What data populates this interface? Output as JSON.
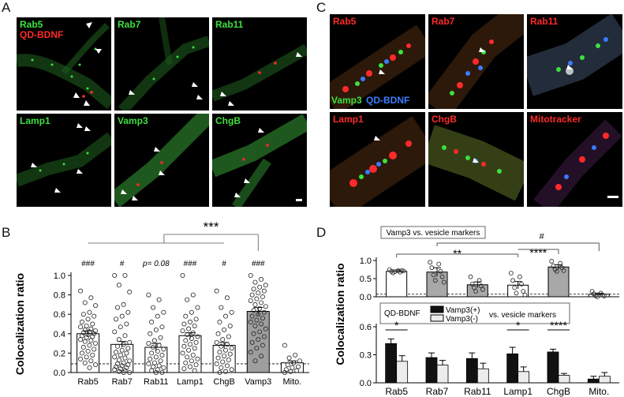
{
  "panels": {
    "A": "A",
    "B": "B",
    "C": "C",
    "D": "D"
  },
  "panelA": {
    "tiles": [
      {
        "labels": [
          {
            "text": "Rab5",
            "color": "green"
          },
          {
            "text": "QD-BDNF",
            "color": "red"
          }
        ]
      },
      {
        "labels": [
          {
            "text": "Rab7",
            "color": "green"
          }
        ]
      },
      {
        "labels": [
          {
            "text": "Rab11",
            "color": "green"
          }
        ]
      },
      {
        "labels": [
          {
            "text": "Lamp1",
            "color": "green"
          }
        ]
      },
      {
        "labels": [
          {
            "text": "Vamp3",
            "color": "green"
          }
        ]
      },
      {
        "labels": [
          {
            "text": "ChgB",
            "color": "green"
          }
        ]
      }
    ]
  },
  "panelC": {
    "tiles": [
      {
        "labels": [
          {
            "text": "Rab5",
            "color": "red"
          }
        ],
        "bottom_labels": [
          {
            "text": "Vamp3",
            "color": "green"
          },
          {
            "text": "QD-BDNF",
            "color": "blue"
          }
        ]
      },
      {
        "labels": [
          {
            "text": "Rab7",
            "color": "red"
          }
        ]
      },
      {
        "labels": [
          {
            "text": "Rab11",
            "color": "red"
          }
        ]
      },
      {
        "labels": [
          {
            "text": "Lamp1",
            "color": "red"
          }
        ]
      },
      {
        "labels": [
          {
            "text": "ChgB",
            "color": "red"
          }
        ]
      },
      {
        "labels": [
          {
            "text": "Mitotracker",
            "color": "red"
          }
        ]
      }
    ]
  },
  "colors": {
    "green": "#3ee03e",
    "red": "#ff2a2a",
    "blue": "#3b7bff"
  },
  "chart_data": [
    {
      "panel": "B",
      "type": "bar",
      "categories": [
        "Rab5",
        "Rab7",
        "Rab11",
        "Lamp1",
        "ChgB",
        "Vamp3",
        "Mito."
      ],
      "values": [
        0.4,
        0.29,
        0.26,
        0.38,
        0.28,
        0.63,
        0.1
      ],
      "errors": [
        0.03,
        0.03,
        0.04,
        0.03,
        0.03,
        0.04,
        0.02
      ],
      "bar_colors": [
        "#ffffff",
        "#ffffff",
        "#ffffff",
        "#ffffff",
        "#ffffff",
        "#9e9e9e",
        "#ffffff"
      ],
      "ylabel": "Colocalization ratio",
      "ylim": [
        0,
        1.0
      ],
      "yticks": [
        "0.0",
        "0.2",
        "0.4",
        "0.6",
        "0.8",
        "1.0"
      ],
      "dashed_line": 0.09,
      "annotations": [
        "###",
        "#",
        "p= 0.08",
        "###",
        "#",
        "###",
        ""
      ],
      "significance": "***",
      "points": [
        [
          0.84,
          0.77,
          0.72,
          0.69,
          0.62,
          0.6,
          0.58,
          0.55,
          0.52,
          0.5,
          0.48,
          0.47,
          0.45,
          0.44,
          0.43,
          0.42,
          0.41,
          0.4,
          0.39,
          0.38,
          0.37,
          0.36,
          0.34,
          0.33,
          0.32,
          0.3,
          0.28,
          0.26,
          0.24,
          0.22,
          0.2,
          0.18,
          0.16,
          0.14,
          0.12,
          0.1,
          0.08,
          0.05
        ],
        [
          1.0,
          1.0,
          0.9,
          0.83,
          0.7,
          0.67,
          0.62,
          0.58,
          0.55,
          0.5,
          0.47,
          0.42,
          0.38,
          0.34,
          0.31,
          0.29,
          0.27,
          0.25,
          0.23,
          0.21,
          0.2,
          0.18,
          0.16,
          0.15,
          0.13,
          0.12,
          0.1,
          0.09,
          0.08,
          0.07,
          0.06,
          0.05,
          0.04,
          0.03,
          0.02,
          0.01,
          0.0,
          0.0
        ],
        [
          0.8,
          0.75,
          0.67,
          0.62,
          0.58,
          0.52,
          0.47,
          0.44,
          0.4,
          0.36,
          0.33,
          0.3,
          0.28,
          0.26,
          0.24,
          0.22,
          0.2,
          0.18,
          0.16,
          0.14,
          0.12,
          0.1,
          0.09,
          0.07,
          0.06,
          0.05,
          0.03,
          0.02,
          0.0,
          0.0
        ],
        [
          1.0,
          0.8,
          0.75,
          0.67,
          0.62,
          0.58,
          0.55,
          0.52,
          0.5,
          0.48,
          0.45,
          0.43,
          0.41,
          0.39,
          0.37,
          0.35,
          0.33,
          0.31,
          0.29,
          0.27,
          0.25,
          0.23,
          0.2,
          0.18,
          0.16,
          0.14,
          0.12,
          0.1,
          0.08,
          0.06,
          0.04,
          0.02
        ],
        [
          0.84,
          0.77,
          0.67,
          0.62,
          0.58,
          0.52,
          0.48,
          0.44,
          0.4,
          0.37,
          0.34,
          0.31,
          0.29,
          0.27,
          0.25,
          0.23,
          0.21,
          0.19,
          0.17,
          0.15,
          0.13,
          0.11,
          0.09,
          0.07,
          0.05,
          0.03,
          0.01,
          0.0
        ],
        [
          1.0,
          0.96,
          0.93,
          0.9,
          0.88,
          0.86,
          0.84,
          0.82,
          0.8,
          0.78,
          0.76,
          0.74,
          0.72,
          0.7,
          0.68,
          0.66,
          0.64,
          0.62,
          0.6,
          0.58,
          0.56,
          0.54,
          0.52,
          0.5,
          0.48,
          0.45,
          0.42,
          0.4,
          0.37,
          0.34,
          0.31,
          0.28,
          0.25,
          0.21,
          0.17,
          0.12
        ],
        [
          0.28,
          0.18,
          0.15,
          0.12,
          0.1,
          0.08,
          0.06,
          0.05,
          0.03,
          0.02,
          0.01,
          0.0
        ]
      ]
    },
    {
      "panel": "D-top",
      "type": "bar",
      "title": "Vamp3 vs. vesicle markers",
      "categories": [
        "Rab5",
        "Rab7",
        "Rab11",
        "Lamp1",
        "ChgB",
        "Mito."
      ],
      "values": [
        0.7,
        0.68,
        0.33,
        0.32,
        0.82,
        0.07
      ],
      "errors": [
        0.04,
        0.12,
        0.08,
        0.1,
        0.06,
        0.03
      ],
      "bar_colors": [
        "#ffffff",
        "#a8a8a8",
        "#a8a8a8",
        "#ffffff",
        "#a8a8a8",
        "#ffffff"
      ],
      "ylim": [
        0,
        1.0
      ],
      "yticks": [
        "0.0",
        "0.5",
        "1.0"
      ],
      "dashed_line": 0.07,
      "significance": [
        "**",
        "****",
        "#"
      ],
      "points": [
        [
          0.75,
          0.72,
          0.7,
          0.68,
          0.66,
          0.72,
          0.69,
          0.71
        ],
        [
          0.95,
          0.9,
          0.8,
          0.7,
          0.6,
          0.55,
          0.45,
          0.4
        ],
        [
          0.55,
          0.45,
          0.35,
          0.3,
          0.25,
          0.2,
          0.15
        ],
        [
          0.65,
          0.55,
          0.45,
          0.35,
          0.25,
          0.15,
          0.1,
          0.05
        ],
        [
          0.98,
          0.92,
          0.85,
          0.8,
          0.75,
          0.72,
          0.7
        ],
        [
          0.15,
          0.1,
          0.08,
          0.05,
          0.03,
          0.02,
          0.0
        ]
      ]
    },
    {
      "panel": "D-bottom",
      "type": "bar",
      "title": "vs. vesicle markers",
      "legend_label": "QD-BDNF",
      "categories": [
        "Rab5",
        "Rab7",
        "Rab11",
        "Lamp1",
        "ChgB",
        "Mito."
      ],
      "ylabel": "Colocalization ratio",
      "ylim": [
        0,
        0.6
      ],
      "yticks": [
        "0.0",
        "0.3",
        "0.6"
      ],
      "series": [
        {
          "name": "Vamp3(+)",
          "values": [
            0.42,
            0.27,
            0.26,
            0.31,
            0.33,
            0.04
          ],
          "errors": [
            0.05,
            0.05,
            0.06,
            0.07,
            0.03,
            0.03
          ],
          "color": "#111111"
        },
        {
          "name": "Vamp3(-)",
          "values": [
            0.23,
            0.19,
            0.15,
            0.12,
            0.08,
            0.07
          ],
          "errors": [
            0.06,
            0.05,
            0.06,
            0.05,
            0.02,
            0.04
          ],
          "color": "#ececec"
        }
      ],
      "significance": [
        "*",
        "",
        "",
        "*",
        "****",
        ""
      ]
    }
  ]
}
